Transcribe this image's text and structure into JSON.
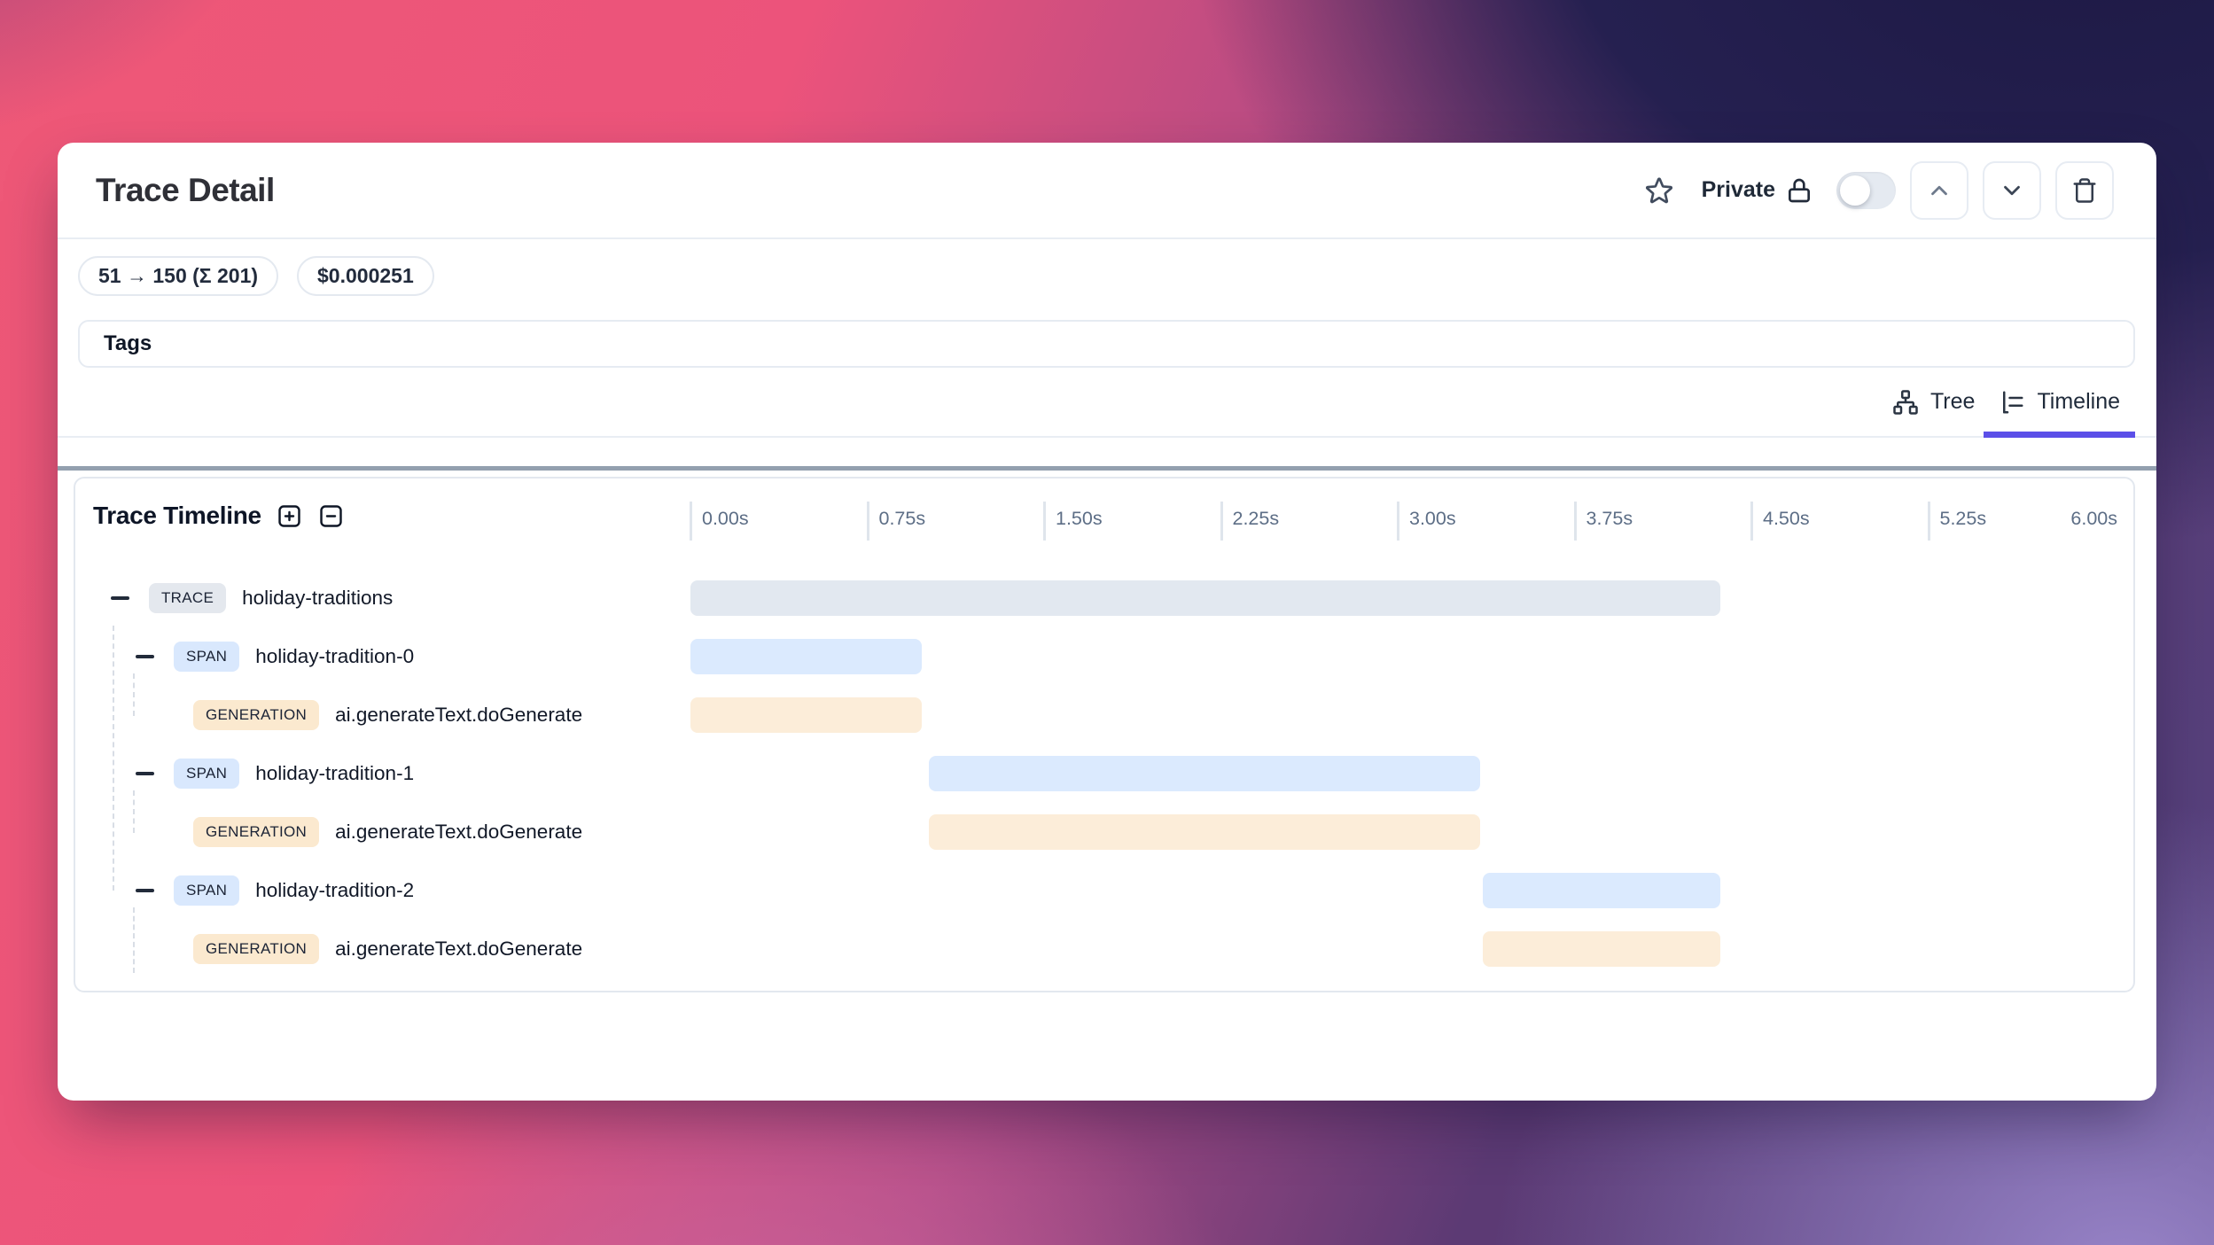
{
  "header": {
    "title": "Trace Detail",
    "privacy_label": "Private"
  },
  "badges": [
    {
      "label": "51 → 150 (Σ 201)"
    },
    {
      "label": "$0.000251"
    }
  ],
  "tags": {
    "label": "Tags"
  },
  "tabs": [
    {
      "label": "Tree",
      "icon": "tree-icon",
      "active": false
    },
    {
      "label": "Timeline",
      "icon": "timeline-icon",
      "active": true
    }
  ],
  "panel": {
    "title": "Trace Timeline"
  },
  "timeline": {
    "axis": {
      "tick_labels": [
        "0.00s",
        "0.75s",
        "1.50s",
        "2.25s",
        "3.00s",
        "3.75s",
        "4.50s",
        "5.25s",
        "6.00s"
      ],
      "interval_s": 0.75
    },
    "types": {
      "TRACE": {
        "badge_bg": "#e4e8ee",
        "bar": "#e2e8f0"
      },
      "SPAN": {
        "badge_bg": "#d9e8fd",
        "bar": "#dbeafe"
      },
      "GENERATION": {
        "badge_bg": "#fbe9cf",
        "bar": "#fcedd9"
      }
    },
    "rows": [
      {
        "type": "TRACE",
        "name": "holiday-traditions",
        "level": 0,
        "collapsible": true,
        "start_s": 0.0,
        "end_s": 4.37
      },
      {
        "type": "SPAN",
        "name": "holiday-tradition-0",
        "level": 1,
        "collapsible": true,
        "start_s": 0.0,
        "end_s": 0.98
      },
      {
        "type": "GENERATION",
        "name": "ai.generateText.doGenerate",
        "level": 2,
        "collapsible": false,
        "start_s": 0.0,
        "end_s": 0.98
      },
      {
        "type": "SPAN",
        "name": "holiday-tradition-1",
        "level": 1,
        "collapsible": true,
        "start_s": 1.01,
        "end_s": 3.35
      },
      {
        "type": "GENERATION",
        "name": "ai.generateText.doGenerate",
        "level": 2,
        "collapsible": false,
        "start_s": 1.01,
        "end_s": 3.35
      },
      {
        "type": "SPAN",
        "name": "holiday-tradition-2",
        "level": 1,
        "collapsible": true,
        "start_s": 3.36,
        "end_s": 4.37
      },
      {
        "type": "GENERATION",
        "name": "ai.generateText.doGenerate",
        "level": 2,
        "collapsible": false,
        "start_s": 3.36,
        "end_s": 4.37
      }
    ]
  },
  "colors": {
    "accent": "#5b4fe8",
    "trace_bar": "#e2e8f0",
    "span_bar": "#dbeafe",
    "generation_bar": "#fcedd9"
  }
}
